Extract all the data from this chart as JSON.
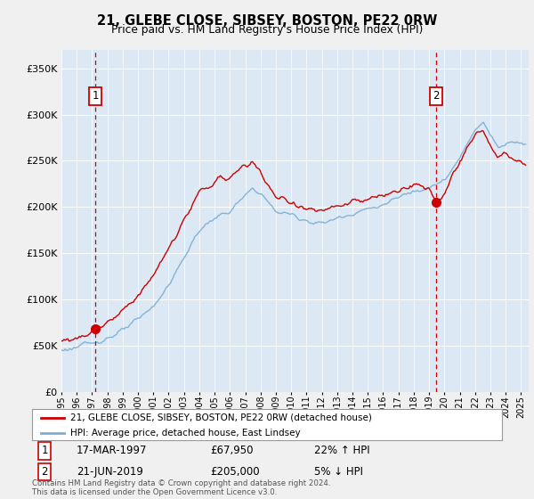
{
  "title": "21, GLEBE CLOSE, SIBSEY, BOSTON, PE22 0RW",
  "subtitle": "Price paid vs. HM Land Registry's House Price Index (HPI)",
  "legend_line1": "21, GLEBE CLOSE, SIBSEY, BOSTON, PE22 0RW (detached house)",
  "legend_line2": "HPI: Average price, detached house, East Lindsey",
  "transaction1_date": "17-MAR-1997",
  "transaction1_price": "£67,950",
  "transaction1_hpi": "22% ↑ HPI",
  "transaction2_date": "21-JUN-2019",
  "transaction2_price": "£205,000",
  "transaction2_hpi": "5% ↓ HPI",
  "footnote": "Contains HM Land Registry data © Crown copyright and database right 2024.\nThis data is licensed under the Open Government Licence v3.0.",
  "hpi_color": "#7aadd4",
  "price_color": "#cc0000",
  "marker_color": "#cc0000",
  "dashed_line_color": "#cc0000",
  "bg_color": "#dce9f5",
  "grid_color": "#ffffff",
  "fig_bg": "#f0f0f0",
  "ylim": [
    0,
    370000
  ],
  "yticks": [
    0,
    50000,
    100000,
    150000,
    200000,
    250000,
    300000,
    350000
  ],
  "xlim_start": 1995.0,
  "xlim_end": 2025.5,
  "transaction1_x": 1997.21,
  "transaction1_y": 67950,
  "transaction2_x": 2019.47,
  "transaction2_y": 205000
}
